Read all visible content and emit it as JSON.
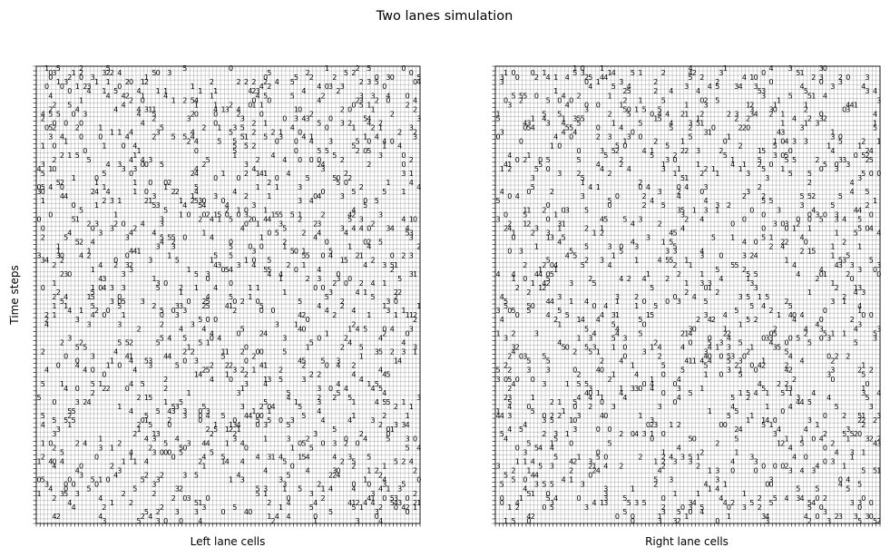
{
  "figure": {
    "title": "Two lanes simulation",
    "ylabel": "Time steps"
  },
  "chart_data": [
    {
      "type": "heatmap",
      "xlabel": "Left lane cells",
      "ylabel": "Time steps",
      "grid": true,
      "cell_value_range": [
        0,
        5
      ],
      "note_values": "Each non-empty cell shows a vehicle speed (0–5); dense diagonal streaks are traffic jams moving backward in time-space."
    },
    {
      "type": "heatmap",
      "xlabel": "Right lane cells",
      "ylabel": "",
      "grid": true,
      "cell_value_range": [
        0,
        5
      ]
    }
  ],
  "colors": {
    "background": "#ffffff",
    "grid": "#000000",
    "text": "#000000"
  }
}
